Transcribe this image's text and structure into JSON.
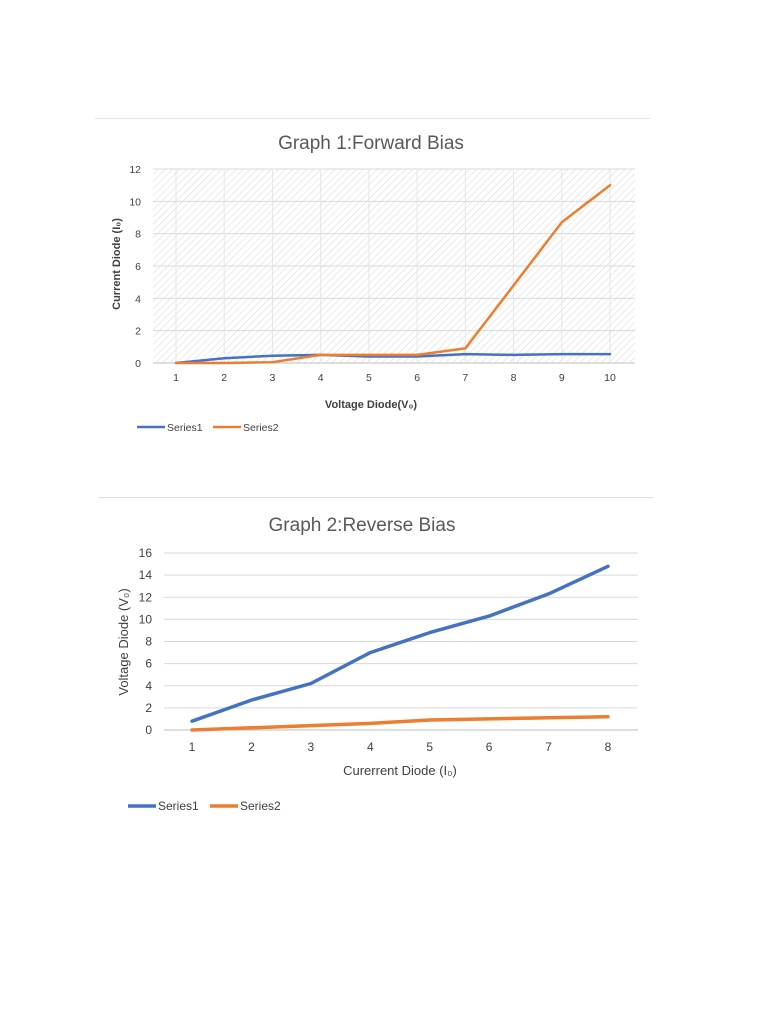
{
  "chart_data": [
    {
      "type": "line",
      "title": "Graph 1:Forward Bias",
      "xlabel": "Voltage Diode(V₀)",
      "ylabel": "Current Diode (I₀)",
      "x": [
        1,
        2,
        3,
        4,
        5,
        6,
        7,
        8,
        9,
        10
      ],
      "xlim": [
        1,
        10
      ],
      "ylim": [
        0,
        12
      ],
      "yticks": [
        0,
        2,
        4,
        6,
        8,
        10,
        12
      ],
      "grid": true,
      "plot_background": "hatched",
      "legend_position": "bottom-left",
      "series": [
        {
          "name": "Series1",
          "color": "#4472c4",
          "values": [
            0.0,
            0.3,
            0.45,
            0.5,
            0.4,
            0.4,
            0.55,
            0.5,
            0.55,
            0.55
          ]
        },
        {
          "name": "Series2",
          "color": "#ed7d31",
          "values": [
            0.0,
            0.0,
            0.05,
            0.5,
            0.5,
            0.5,
            0.9,
            4.8,
            8.7,
            11.0
          ]
        }
      ]
    },
    {
      "type": "line",
      "title": "Graph 2:Reverse Bias",
      "xlabel": "Curerrent Diode (I₀)",
      "ylabel": "Voltage Diode (V₀)",
      "x": [
        1,
        2,
        3,
        4,
        5,
        6,
        7,
        8
      ],
      "xlim": [
        1,
        8
      ],
      "ylim": [
        0,
        16
      ],
      "yticks": [
        0,
        2,
        4,
        6,
        8,
        10,
        12,
        14,
        16
      ],
      "grid": true,
      "legend_position": "bottom-left",
      "series": [
        {
          "name": "Series1",
          "color": "#4472c4",
          "values": [
            0.8,
            2.7,
            4.2,
            7.0,
            8.8,
            10.3,
            12.3,
            14.8
          ]
        },
        {
          "name": "Series2",
          "color": "#ed7d31",
          "values": [
            0.0,
            0.2,
            0.4,
            0.6,
            0.9,
            1.0,
            1.1,
            1.2
          ]
        }
      ]
    }
  ]
}
